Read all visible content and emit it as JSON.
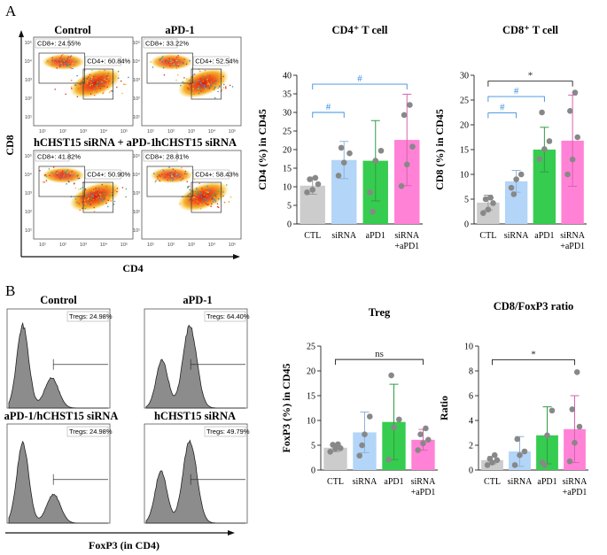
{
  "panel_labels": [
    "A",
    "B"
  ],
  "flow_panels": {
    "titles": [
      "Control",
      "aPD-1",
      "hCHST15 siRNA + aPD-1",
      "hCHST15 siRNA"
    ],
    "cd8_gates": [
      "CD8+: 24.55%",
      "CD8+: 33.22%",
      "CD8+: 41.82%",
      "CD8+: 28.81%"
    ],
    "cd4_gates": [
      "CD4+: 60.84%",
      "CD4+: 52.54%",
      "CD4+: 50.90%",
      "CD4+: 58.43%"
    ],
    "x_axis_title": "CD4",
    "y_axis_title": "CD8",
    "log_ticks": [
      "10¹",
      "10²",
      "10³",
      "10⁴",
      "10⁵"
    ]
  },
  "histogram_panels": {
    "titles": [
      "Control",
      "aPD-1",
      "aPD-1/hCHST15 siRNA",
      "hCHST15 siRNA"
    ],
    "treg_gates": [
      "Tregs: 24.98%",
      "Tregs: 64.40%",
      "Tregs: 24.98%",
      "Tregs: 49.79%"
    ],
    "x_axis_title": "FoxP3 (in CD4)"
  },
  "colors": {
    "CTL": "#cccccc",
    "siRNA": "#b3d5f7",
    "aPD1": "#36cc4f",
    "siRNA_aPD1": "#ff82d6",
    "points": "#888888",
    "bracket_blue": "#3a8fe0",
    "bracket_black": "#222222",
    "flow_hot": "#e23a1f",
    "hist_fill": "#8c8c8c"
  },
  "chart_data": [
    {
      "type": "bar",
      "title": "CD4⁺ T cell",
      "ylabel": "CD4 (%) in CD45",
      "categories": [
        "CTL",
        "siRNA",
        "aPD1",
        "siRNA\n+aPD1"
      ],
      "values": [
        10.3,
        17.2,
        17.0,
        22.6
      ],
      "errors": [
        2.3,
        5.0,
        10.8,
        12.3
      ],
      "points": [
        [
          8.5,
          9.2,
          10.7,
          12.0,
          12.4
        ],
        [
          13.0,
          16.5,
          19.0,
          20.5
        ],
        [
          8.5,
          17.0,
          19.7,
          3.3
        ],
        [
          10.2,
          16.0,
          20.8,
          29.3,
          32.0
        ]
      ],
      "ylim": [
        0,
        40
      ],
      "yticks": [
        0,
        5,
        10,
        15,
        20,
        25,
        30,
        35,
        40
      ],
      "brackets": [
        {
          "from": 0,
          "to": 1,
          "y": 30,
          "label": "#",
          "color": "blue"
        },
        {
          "from": 0,
          "to": 3,
          "y": 37.6,
          "label": "#",
          "color": "blue"
        }
      ]
    },
    {
      "type": "bar",
      "title": "CD8⁺ T cell",
      "ylabel": "CD8 (%) in CD45",
      "categories": [
        "CTL",
        "siRNA",
        "aPD1",
        "siRNA\n+aPD1"
      ],
      "values": [
        4.3,
        8.6,
        15.0,
        16.8
      ],
      "errors": [
        1.5,
        2.2,
        4.5,
        9.2
      ],
      "points": [
        [
          2.2,
          2.9,
          4.2,
          5.0,
          5.3
        ],
        [
          7.3,
          9.0,
          10.0,
          6.0
        ],
        [
          13.1,
          15.1,
          16.7,
          22.5
        ],
        [
          10.0,
          13.0,
          17.5,
          22.8,
          26.5
        ]
      ],
      "ylim": [
        0,
        30
      ],
      "yticks": [
        0,
        5,
        10,
        15,
        20,
        25,
        30
      ],
      "brackets": [
        {
          "from": 0,
          "to": 1,
          "y": 22.4,
          "label": "#",
          "color": "blue"
        },
        {
          "from": 0,
          "to": 2,
          "y": 25.7,
          "label": "#",
          "color": "blue"
        },
        {
          "from": 0,
          "to": 3,
          "y": 28.8,
          "label": "*",
          "color": "black"
        }
      ]
    },
    {
      "type": "bar",
      "title": "Treg",
      "ylabel": "FoxP3 (%) in CD45",
      "categories": [
        "CTL",
        "siRNA",
        "aPD1",
        "siRNA\n+aPD1"
      ],
      "values": [
        4.5,
        7.6,
        9.7,
        6.1
      ],
      "errors": [
        0.8,
        4.1,
        7.6,
        2.1
      ],
      "points": [
        [
          3.7,
          4.3,
          4.4,
          5.1,
          5.2
        ],
        [
          2.9,
          7.2,
          10.8,
          5.0
        ],
        [
          2.1,
          8.6,
          10.2,
          19.1
        ],
        [
          4.0,
          5.4,
          6.1,
          7.2,
          8.4
        ]
      ],
      "ylim": [
        0,
        25
      ],
      "yticks": [
        0,
        5,
        10,
        15,
        20,
        25
      ],
      "brackets": [
        {
          "from": 0,
          "to": 3,
          "y": 22.3,
          "label": "ns",
          "color": "black"
        }
      ]
    },
    {
      "type": "bar",
      "title": "CD8/FoxP3 ratio",
      "ylabel": "Ratio",
      "categories": [
        "CTL",
        "siRNA",
        "aPD1",
        "siRNA\n+aPD1"
      ],
      "values": [
        0.8,
        1.5,
        2.8,
        3.3
      ],
      "errors": [
        0.3,
        1.2,
        2.3,
        2.7
      ],
      "points": [
        [
          0.4,
          0.6,
          0.8,
          0.9,
          1.2
        ],
        [
          0.4,
          1.2,
          1.5,
          2.5
        ],
        [
          0.6,
          2.8,
          4.8,
          0.4
        ],
        [
          0.7,
          2.2,
          3.5,
          4.9,
          7.9
        ]
      ],
      "ylim": [
        0,
        10
      ],
      "yticks": [
        0,
        2,
        4,
        6,
        8,
        10
      ],
      "brackets": [
        {
          "from": 0,
          "to": 3,
          "y": 8.9,
          "label": "*",
          "color": "black"
        }
      ]
    }
  ]
}
